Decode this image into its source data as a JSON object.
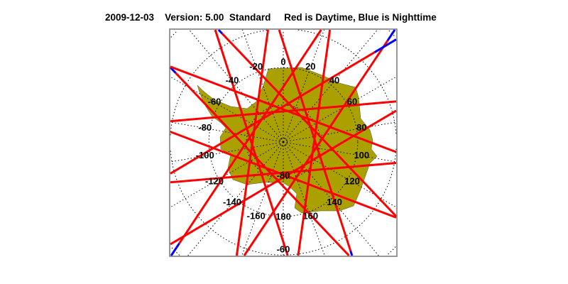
{
  "title": {
    "date": "2009-12-03",
    "version": "Version: 5.00",
    "mode": "Standard",
    "legend": "Red is Daytime, Blue is Nighttime"
  },
  "map": {
    "projection": "south polar stereographic",
    "longitude_labels": [
      "0",
      "20",
      "40",
      "60",
      "80",
      "100",
      "120",
      "140",
      "160",
      "180",
      "-160",
      "-140",
      "-120",
      "-100",
      "-80",
      "-60",
      "-40",
      "-20"
    ],
    "longitude_values": [
      0,
      20,
      40,
      60,
      80,
      100,
      120,
      140,
      160,
      180,
      -160,
      -140,
      -120,
      -100,
      -80,
      -60,
      -40,
      -20
    ],
    "latitude_labels": [
      "-80",
      "-60"
    ],
    "latitude_rings": [
      -80,
      -70,
      -60,
      -50,
      -40
    ],
    "colors": {
      "day": "#ff0000",
      "night": "#0000ff",
      "land": "#aaa000",
      "grid": "#000000",
      "frame": "#777777"
    }
  }
}
